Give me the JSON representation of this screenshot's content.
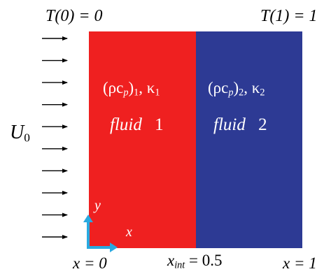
{
  "colors": {
    "fluid1_fill": "#ef2020",
    "fluid2_fill": "#2d3a94",
    "axis_arrow": "#29a9e0",
    "flow_arrows": "#000000",
    "text_dark": "#000000",
    "text_light": "#ffffff"
  },
  "boundary": {
    "left_label": "T(0) = 0",
    "right_label": "T(1) = 1"
  },
  "inflow": {
    "label": "U",
    "label_sub": "0",
    "arrow_count": 10,
    "arrow_icon": "right-arrow-icon"
  },
  "fluid1": {
    "property_open": "(ρc",
    "property_sub_p": "p",
    "property_close": ")",
    "property_sub_index": "1",
    "property_sep": ", κ",
    "property_kappa_sub": "1",
    "name": "fluid",
    "number": "1"
  },
  "fluid2": {
    "property_open": "(ρc",
    "property_sub_p": "p",
    "property_close": ")",
    "property_sub_index": "2",
    "property_sep": ", κ",
    "property_kappa_sub": "2",
    "name": "fluid",
    "number": "2"
  },
  "axes": {
    "x_label": "x",
    "y_label": "y",
    "icon": "axis-arrows-icon"
  },
  "positions": {
    "left": "x = 0",
    "interface_var": "x",
    "interface_sub": "int",
    "interface_value": " = 0.5",
    "right": "x = 1"
  }
}
